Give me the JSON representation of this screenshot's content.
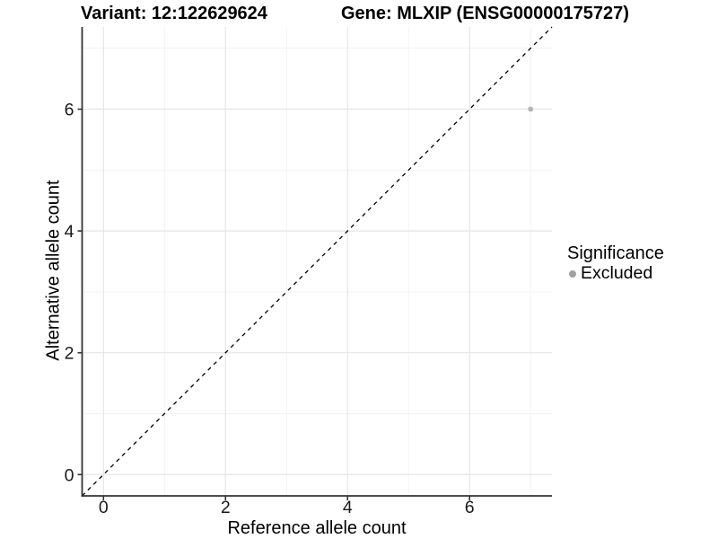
{
  "titles": {
    "variant": "Variant: 12:122629624",
    "gene": "Gene: MLXIP (ENSG00000175727)"
  },
  "legend": {
    "title": "Significance",
    "items": [
      {
        "label": "Excluded",
        "color": "#a0a0a0"
      }
    ]
  },
  "chart_data": {
    "type": "scatter",
    "title": "Variant: 12:122629624   Gene: MLXIP (ENSG00000175727)",
    "xlabel": "Reference allele count",
    "ylabel": "Alternative allele count",
    "xlim": [
      -0.35,
      7.35
    ],
    "ylim": [
      -0.35,
      7.35
    ],
    "x_ticks": [
      0,
      2,
      4,
      6
    ],
    "y_ticks": [
      0,
      2,
      4,
      6
    ],
    "x_minor_ticks": [
      1,
      3,
      5,
      7
    ],
    "y_minor_ticks": [
      1,
      3,
      5,
      7
    ],
    "grid": true,
    "legend_position": "right",
    "series": [
      {
        "name": "Excluded",
        "points": [
          {
            "x": 7,
            "y": 6
          }
        ],
        "color": "#b5b5b5"
      }
    ],
    "reference_line": {
      "type": "identity",
      "style": "dashed",
      "color": "#000000"
    },
    "colors": {
      "grid_major": "#e6e6e6",
      "grid_minor": "#f1f1f1",
      "axis_line": "#333333",
      "tick_label": "#1a1a1a"
    }
  }
}
